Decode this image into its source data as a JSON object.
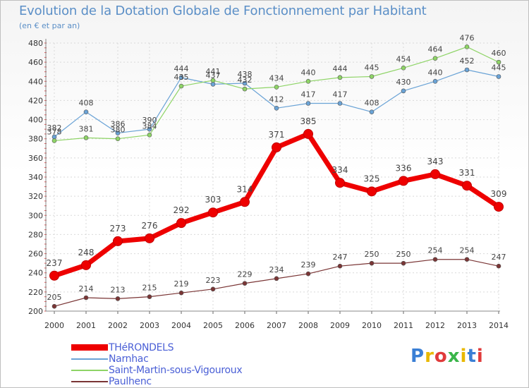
{
  "title": "Evolution de la Dotation Globale de Fonctionnement par Habitant",
  "subtitle": "(en € et par an)",
  "logo_text": "Proxiti",
  "chart_data": {
    "type": "line",
    "x": [
      2000,
      2001,
      2002,
      2003,
      2004,
      2005,
      2006,
      2007,
      2008,
      2009,
      2010,
      2011,
      2012,
      2013,
      2014
    ],
    "ylim": [
      200,
      480
    ],
    "yticks": [
      200,
      220,
      240,
      260,
      280,
      300,
      320,
      340,
      360,
      380,
      400,
      420,
      440,
      460,
      480
    ],
    "grid": true,
    "legend_position": "bottom",
    "series": [
      {
        "name": "THéRONDELS",
        "color": "#ee0000",
        "values": [
          237,
          248,
          273,
          276,
          292,
          303,
          314,
          371,
          385,
          334,
          325,
          336,
          343,
          331,
          309
        ]
      },
      {
        "name": "Narnhac",
        "color": "#6aa3d6",
        "values": [
          382,
          408,
          386,
          390,
          444,
          437,
          438,
          412,
          417,
          417,
          408,
          430,
          440,
          452,
          445
        ]
      },
      {
        "name": "Saint-Martin-sous-Vigouroux",
        "color": "#8ed466",
        "values": [
          378,
          381,
          380,
          384,
          435,
          441,
          432,
          434,
          440,
          444,
          445,
          454,
          464,
          476,
          460
        ]
      },
      {
        "name": "Paulhenc",
        "color": "#7a3535",
        "values": [
          205,
          214,
          213,
          215,
          219,
          223,
          229,
          234,
          239,
          247,
          250,
          250,
          254,
          254,
          247
        ]
      }
    ]
  }
}
